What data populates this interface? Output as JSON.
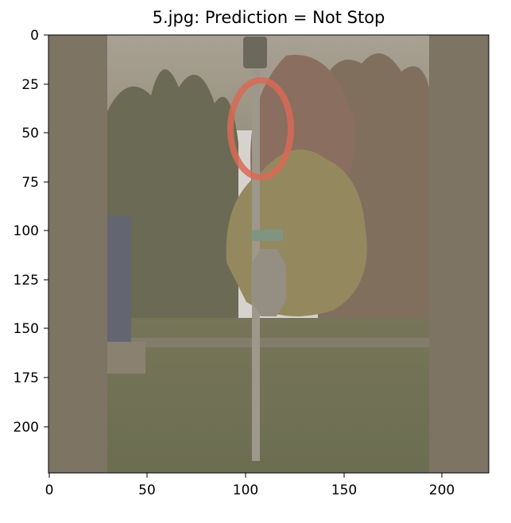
{
  "figure": {
    "title": "5.jpg: Prediction = Not Stop",
    "image_description_icon": "park-street-photo-with-signpost",
    "x_ticks": [
      0,
      50,
      100,
      150,
      200
    ],
    "y_ticks": [
      0,
      25,
      50,
      75,
      100,
      125,
      150,
      175,
      200
    ],
    "x_range": [
      -0.5,
      223.5
    ],
    "y_range": [
      223.5,
      -0.5
    ],
    "overlay_color": "#7d7464",
    "circle_highlight_color": "#d86a55",
    "circle_highlight_center": [
      107,
      48
    ],
    "circle_highlight_radius": [
      15,
      25
    ]
  }
}
